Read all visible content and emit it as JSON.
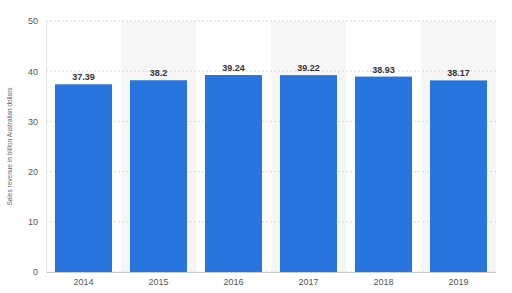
{
  "chart_data": {
    "type": "bar",
    "y_label": "Sales revenue in billion Australian dollars",
    "categories": [
      "2014",
      "2015",
      "2016",
      "2017",
      "2018",
      "2019"
    ],
    "values": [
      37.39,
      38.2,
      39.24,
      39.22,
      38.93,
      38.17
    ],
    "color": "#2876dd",
    "ylim": [
      0,
      50
    ],
    "yticks": [
      0,
      10,
      20,
      30,
      40,
      50
    ],
    "grid": true,
    "data_labels": true
  }
}
